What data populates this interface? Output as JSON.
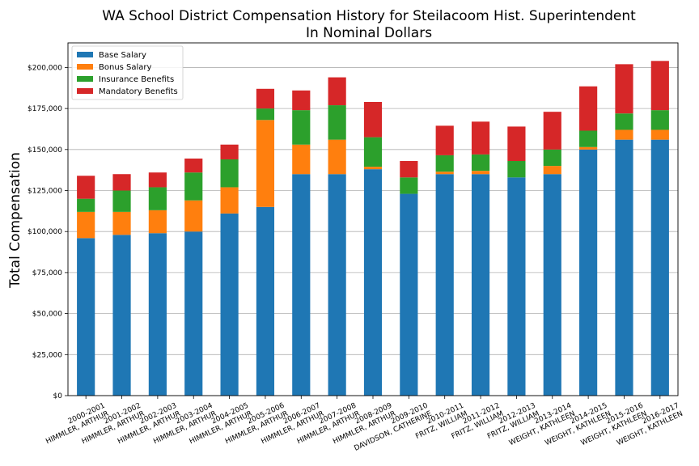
{
  "chart_data": {
    "type": "bar",
    "stacked": true,
    "title": "WA School District Compensation History for Steilacoom Hist. Superintendent",
    "subtitle": "In Nominal Dollars",
    "ylabel": "Total Compensation",
    "xlabel": "",
    "ylim": [
      0,
      215000
    ],
    "yticks": [
      0,
      25000,
      50000,
      75000,
      100000,
      125000,
      150000,
      175000,
      200000
    ],
    "ytick_labels": [
      "$0",
      "$25,000",
      "$50,000",
      "$75,000",
      "$100,000",
      "$125,000",
      "$150,000",
      "$175,000",
      "$200,000"
    ],
    "grid": "horizontal",
    "legend_position": "top-left",
    "categories": [
      [
        "2000-2001",
        "HIMMLER, ARTHUR"
      ],
      [
        "2001-2002",
        "HIMMLER, ARTHUR"
      ],
      [
        "2002-2003",
        "HIMMLER, ARTHUR"
      ],
      [
        "2003-2004",
        "HIMMLER, ARTHUR"
      ],
      [
        "2004-2005",
        "HIMMLER, ARTHUR"
      ],
      [
        "2005-2006",
        "HIMMLER, ARTHUR"
      ],
      [
        "2006-2007",
        "HIMMLER, ARTHUR"
      ],
      [
        "2007-2008",
        "HIMMLER, ARTHUR"
      ],
      [
        "2008-2009",
        "HIMMLER, ARTHUR"
      ],
      [
        "2009-2010",
        "DAVIDSON, CATHERINE"
      ],
      [
        "2010-2011",
        "FRITZ, WILLIAM"
      ],
      [
        "2011-2012",
        "FRITZ, WILLIAM"
      ],
      [
        "2012-2013",
        "FRITZ, WILLIAM"
      ],
      [
        "2013-2014",
        "WEIGHT, KATHLEEN"
      ],
      [
        "2014-2015",
        "WEIGHT, KATHLEEN"
      ],
      [
        "2015-2016",
        "WEIGHT, KATHLEEN"
      ],
      [
        "2016-2017",
        "WEIGHT, KATHLEEN"
      ]
    ],
    "series": [
      {
        "name": "Base Salary",
        "color": "#1f77b4",
        "values": [
          96000,
          98000,
          99000,
          100000,
          111000,
          115000,
          135000,
          135000,
          138000,
          123000,
          135000,
          135000,
          133000,
          135000,
          150000,
          156000,
          156000
        ]
      },
      {
        "name": "Bonus Salary",
        "color": "#ff7f0e",
        "values": [
          16000,
          14000,
          14000,
          19000,
          16000,
          53000,
          18000,
          21000,
          1500,
          0,
          1500,
          2000,
          0,
          5000,
          1500,
          6000,
          6000
        ]
      },
      {
        "name": "Insurance Benefits",
        "color": "#2ca02c",
        "values": [
          8000,
          13000,
          14000,
          17000,
          17000,
          7000,
          21000,
          21000,
          18000,
          10000,
          10000,
          10000,
          10000,
          10000,
          10000,
          10000,
          12000
        ]
      },
      {
        "name": "Mandatory Benefits",
        "color": "#d62728",
        "values": [
          14000,
          10000,
          9000,
          8500,
          9000,
          12000,
          12000,
          17000,
          21500,
          10000,
          18000,
          20000,
          21000,
          23000,
          27000,
          30000,
          30000
        ]
      }
    ]
  }
}
